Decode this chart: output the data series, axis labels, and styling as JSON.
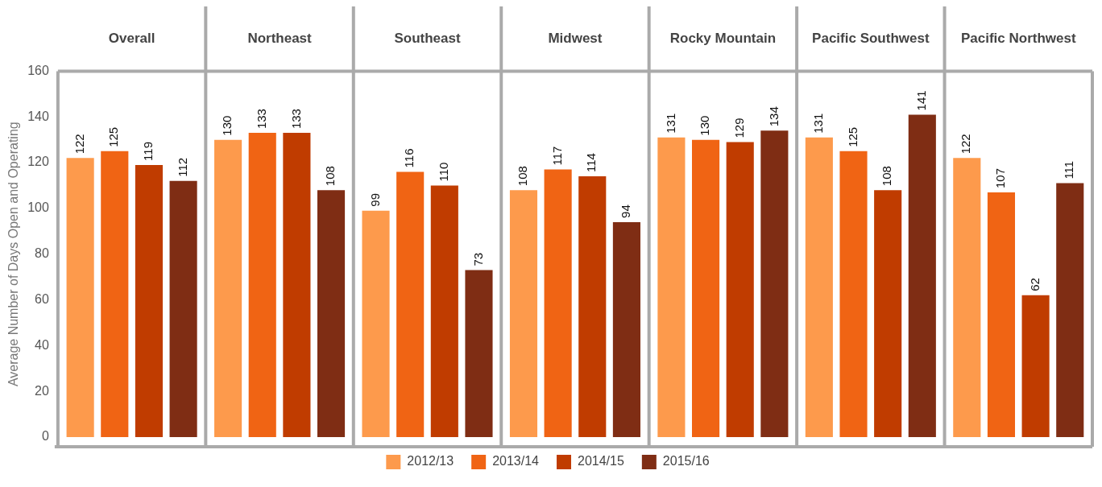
{
  "chart_data": {
    "type": "bar",
    "ylabel": "Average Number of Days Open and Operating",
    "categories": [
      "Overall",
      "Northeast",
      "Southeast",
      "Midwest",
      "Rocky Mountain",
      "Pacific Southwest",
      "Pacific Northwest"
    ],
    "series": [
      {
        "name": "2012/13",
        "color": "#fd9a4c",
        "values": [
          122,
          130,
          99,
          108,
          131,
          131,
          122
        ]
      },
      {
        "name": "2013/14",
        "color": "#f06414",
        "values": [
          125,
          133,
          116,
          117,
          130,
          125,
          107
        ]
      },
      {
        "name": "2014/15",
        "color": "#c03c00",
        "values": [
          119,
          133,
          110,
          114,
          129,
          108,
          62
        ]
      },
      {
        "name": "2015/16",
        "color": "#7f2d14",
        "values": [
          112,
          108,
          73,
          94,
          134,
          141,
          111
        ]
      }
    ],
    "ylim": [
      0,
      160
    ],
    "yticks": [
      0,
      20,
      40,
      60,
      80,
      100,
      120,
      140,
      160
    ],
    "data_labels": true,
    "legend": "bottom",
    "grid": false
  }
}
